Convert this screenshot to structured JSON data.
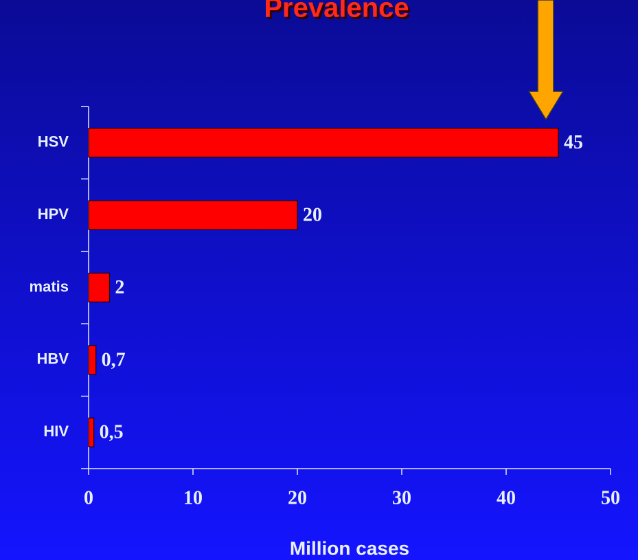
{
  "chart_data": {
    "type": "hbar",
    "title": "Prevalence",
    "xlabel": "Million cases",
    "categories": [
      "HSV",
      "HPV",
      "matis",
      "HBV",
      "HIV"
    ],
    "values": [
      45,
      20,
      2,
      0.7,
      0.5
    ],
    "value_labels": [
      "45",
      "20",
      "2",
      "0,7",
      "0,5"
    ],
    "color": "#ff0000",
    "xlim": [
      0,
      50
    ],
    "xticks": [
      0,
      10,
      20,
      30,
      40,
      50
    ]
  }
}
